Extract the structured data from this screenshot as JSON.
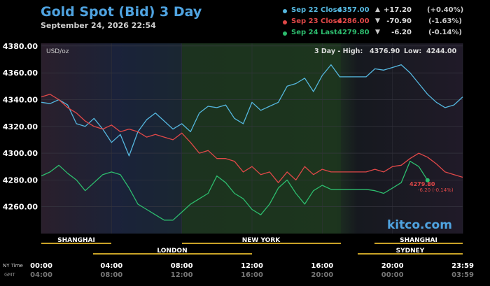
{
  "header": {
    "title": "Gold Spot (Bid) 3 Day",
    "subtitle": "September 24, 2026 22:54"
  },
  "legend": [
    {
      "label": "Sep 22 Close",
      "value": "4357.00",
      "arrow": "▲",
      "change": "+17.20",
      "percent": "(+0.40%)",
      "color": "#55b7df"
    },
    {
      "label": "Sep 23 Close",
      "value": "4286.00",
      "arrow": "▼",
      "change": "-70.90",
      "percent": "(-1.63%)",
      "color": "#e04848"
    },
    {
      "label": "Sep 24 Last",
      "value": "4279.80",
      "arrow": "▼",
      "change": "-6.20",
      "percent": "(-0.14%)",
      "color": "#2dbd6e"
    }
  ],
  "plot_info": {
    "unit": "USD/oz",
    "range_label": "3 Day - High:",
    "high": "4376.90",
    "low_label": "Low:",
    "low": "4244.00",
    "watermark": "kitco.com"
  },
  "last_marker": {
    "price": "4279.80",
    "change": "-6.20 (-0.14%)"
  },
  "sessions": {
    "row1": [
      "SHANGHAI",
      "NEW YORK",
      "SHANGHAI"
    ],
    "row2": [
      "LONDON",
      "SYDNEY"
    ]
  },
  "time_axis": {
    "ny_label": "NY Time",
    "gmt_label": "GMT",
    "ny_ticks": [
      "00:00",
      "04:00",
      "08:00",
      "12:00",
      "16:00",
      "20:00",
      "23:59"
    ],
    "gmt_ticks": [
      "04:00",
      "08:00",
      "12:00",
      "16:00",
      "20:00",
      "00:00",
      "03:59"
    ]
  },
  "colors": {
    "sep22": "#55b7df",
    "sep23": "#e04848",
    "sep24": "#2dbd6e",
    "title": "#4fa3e0",
    "session_bar": "#c9a227"
  },
  "chart_data": {
    "type": "line",
    "title": "Gold Spot (Bid) 3 Day",
    "ylabel": "USD/oz",
    "ylim": [
      4240,
      4382
    ],
    "xlim": [
      0,
      24
    ],
    "yticks": [
      4260,
      4280,
      4300,
      4320,
      4340,
      4360,
      4380
    ],
    "ytick_labels": [
      "4260.00",
      "4280.00",
      "4300.00",
      "4320.00",
      "4340.00",
      "4360.00",
      "4380.00"
    ],
    "series": [
      {
        "name": "Sep 22",
        "x": [
          0,
          0.5,
          1,
          1.5,
          2,
          2.5,
          3,
          3.5,
          4,
          4.5,
          5,
          5.5,
          6,
          6.5,
          7,
          7.5,
          8,
          8.5,
          9,
          9.5,
          10,
          10.5,
          11,
          11.5,
          12,
          12.5,
          13,
          13.5,
          14,
          14.5,
          15,
          15.5,
          16,
          16.5,
          17,
          17.5,
          18,
          18.5,
          19,
          19.5,
          20,
          20.5,
          21,
          21.5,
          22,
          22.5,
          23,
          23.5,
          24
        ],
        "values": [
          4338,
          4337,
          4340,
          4336,
          4322,
          4320,
          4326,
          4318,
          4308,
          4314,
          4298,
          4316,
          4325,
          4330,
          4324,
          4318,
          4322,
          4316,
          4330,
          4335,
          4334,
          4336,
          4326,
          4322,
          4338,
          4332,
          4335,
          4338,
          4350,
          4352,
          4356,
          4346,
          4358,
          4366,
          4357,
          4357,
          4357,
          4357,
          4363,
          4362,
          4364,
          4366,
          4360,
          4352,
          4344,
          4338,
          4334,
          4336,
          4342
        ]
      },
      {
        "name": "Sep 23",
        "x": [
          0,
          0.5,
          1,
          1.5,
          2,
          2.5,
          3,
          3.5,
          4,
          4.5,
          5,
          5.5,
          6,
          6.5,
          7,
          7.5,
          8,
          8.5,
          9,
          9.5,
          10,
          10.5,
          11,
          11.5,
          12,
          12.5,
          13,
          13.5,
          14,
          14.5,
          15,
          15.5,
          16,
          16.5,
          17,
          17.5,
          18,
          18.5,
          19,
          19.5,
          20,
          20.5,
          21,
          21.5,
          22,
          22.5,
          23,
          23.5,
          24
        ],
        "values": [
          4342,
          4344,
          4340,
          4334,
          4330,
          4324,
          4320,
          4318,
          4321,
          4316,
          4318,
          4316,
          4312,
          4314,
          4312,
          4310,
          4315,
          4308,
          4300,
          4302,
          4296,
          4296,
          4294,
          4286,
          4290,
          4284,
          4286,
          4278,
          4286,
          4280,
          4290,
          4284,
          4288,
          4286,
          4286,
          4286,
          4286,
          4286,
          4288,
          4286,
          4290,
          4291,
          4296,
          4300,
          4297,
          4292,
          4286,
          4284,
          4282
        ]
      },
      {
        "name": "Sep 24",
        "x": [
          0,
          0.5,
          1,
          1.5,
          2,
          2.5,
          3,
          3.5,
          4,
          4.5,
          5,
          5.5,
          6,
          6.5,
          7,
          7.5,
          8,
          8.5,
          9,
          9.5,
          10,
          10.5,
          11,
          11.5,
          12,
          12.5,
          13,
          13.5,
          14,
          14.5,
          15,
          15.5,
          16,
          16.5,
          17,
          17.5,
          18,
          18.5,
          19,
          19.5,
          20,
          20.5,
          21,
          21.5,
          22
        ],
        "values": [
          4283,
          4286,
          4291,
          4285,
          4280,
          4272,
          4278,
          4284,
          4286,
          4284,
          4274,
          4262,
          4258,
          4254,
          4250,
          4250,
          4256,
          4262,
          4266,
          4270,
          4283,
          4278,
          4270,
          4266,
          4258,
          4254,
          4262,
          4274,
          4280,
          4270,
          4262,
          4272,
          4276,
          4273,
          4273,
          4273,
          4273,
          4273,
          4272,
          4270,
          4274,
          4278,
          4294,
          4290,
          4279.8
        ]
      }
    ]
  }
}
